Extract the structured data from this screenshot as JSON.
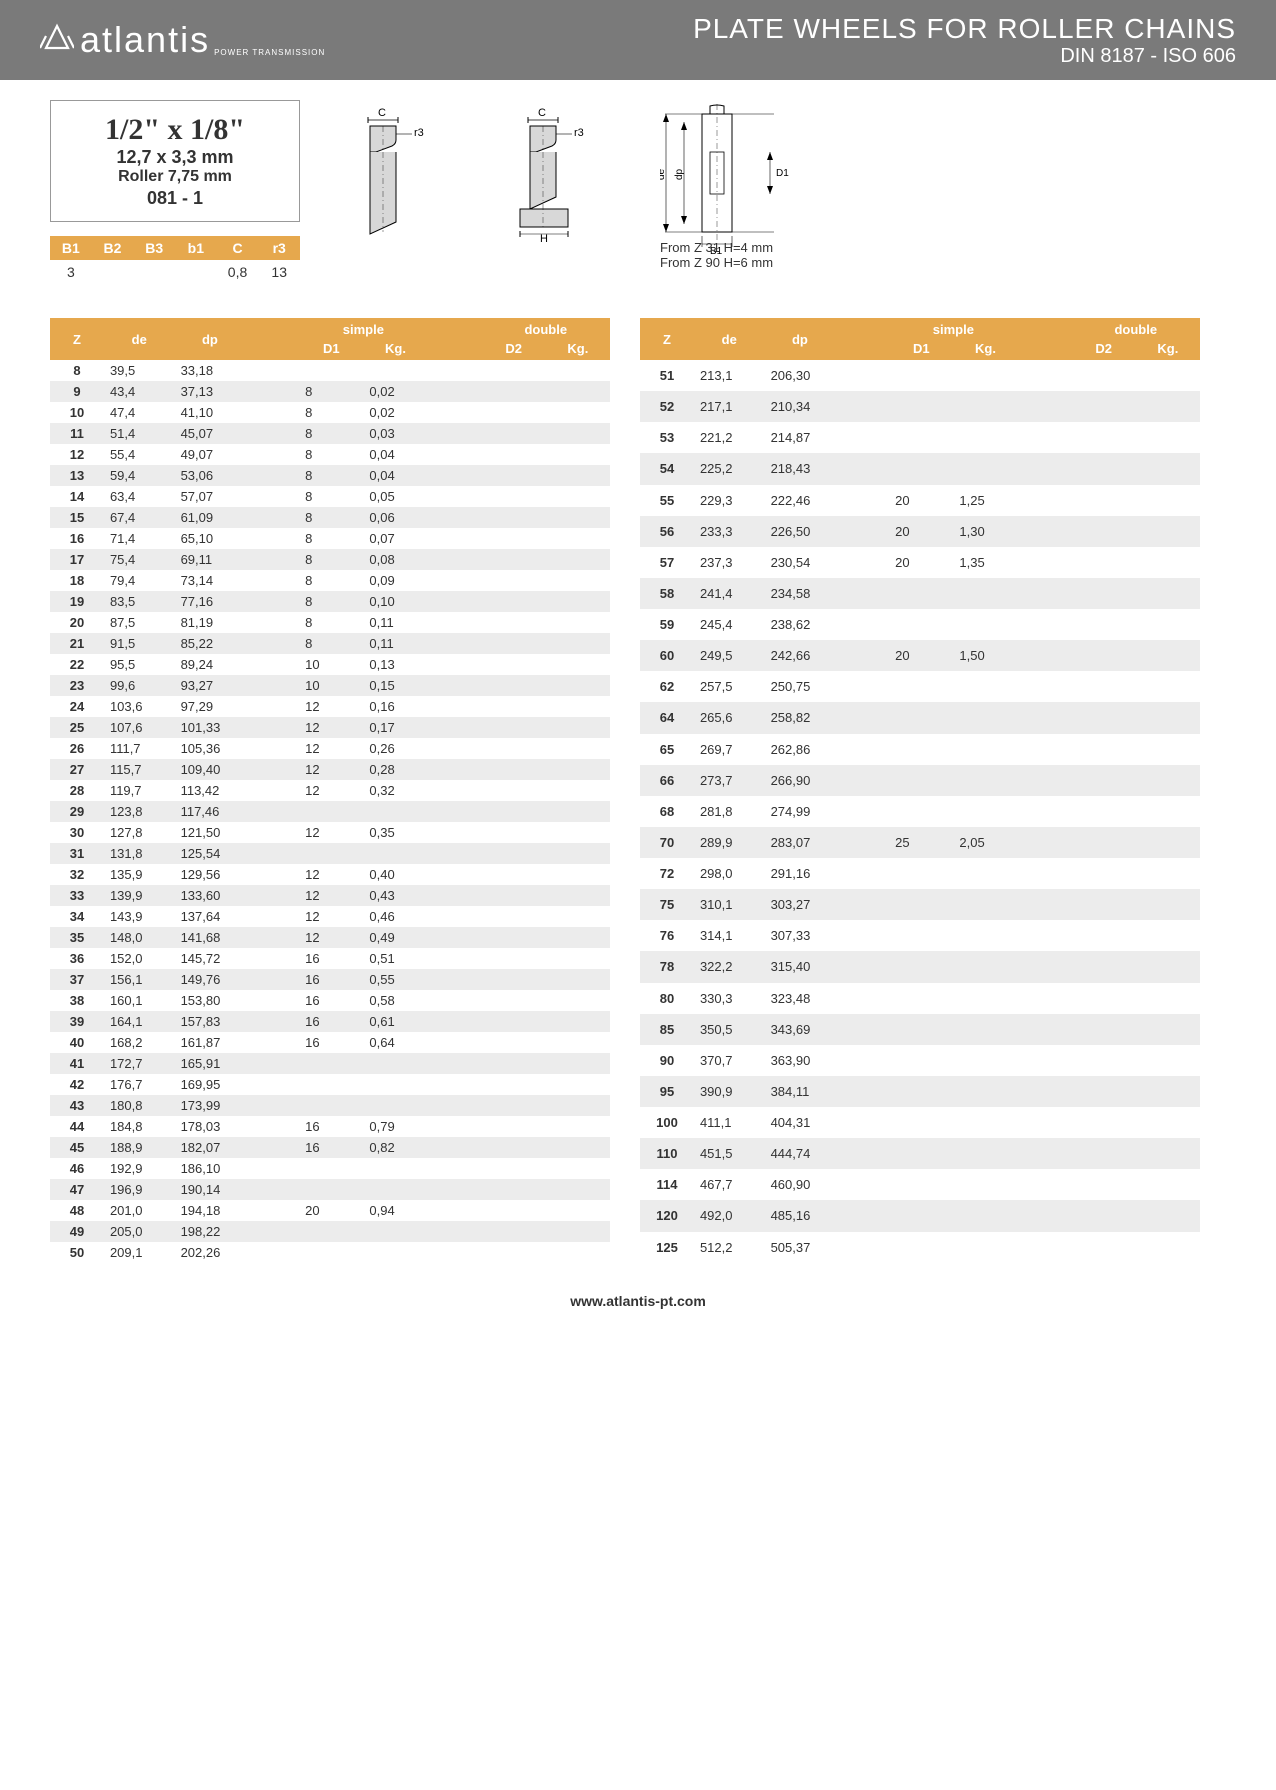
{
  "header": {
    "logo_text": "atlantis",
    "logo_sub": "POWER TRANSMISSION",
    "title_main": "PLATE WHEELS FOR ROLLER CHAINS",
    "title_sub": "DIN 8187 - ISO 606"
  },
  "spec": {
    "main": "1/2\" x 1/8\"",
    "mm": "12,7 x 3,3 mm",
    "roller": "Roller 7,75 mm",
    "code": "081 - 1"
  },
  "diag_notes": {
    "line1": "From Z 31 H=4 mm",
    "line2": "From Z 90 H=6 mm"
  },
  "params": {
    "headers": [
      "B1",
      "B2",
      "B3",
      "b1",
      "C",
      "r3"
    ],
    "values": [
      "3",
      "",
      "",
      "",
      "0,8",
      "13"
    ]
  },
  "table_headers": {
    "z": "Z",
    "de": "de",
    "dp": "dp",
    "simple": "simple",
    "d1": "D1",
    "kg": "Kg.",
    "double": "double",
    "d2": "D2",
    "kg2": "Kg."
  },
  "left_rows": [
    {
      "z": "8",
      "de": "39,5",
      "dp": "33,18",
      "d1": "",
      "kg": ""
    },
    {
      "z": "9",
      "de": "43,4",
      "dp": "37,13",
      "d1": "8",
      "kg": "0,02"
    },
    {
      "z": "10",
      "de": "47,4",
      "dp": "41,10",
      "d1": "8",
      "kg": "0,02"
    },
    {
      "z": "11",
      "de": "51,4",
      "dp": "45,07",
      "d1": "8",
      "kg": "0,03"
    },
    {
      "z": "12",
      "de": "55,4",
      "dp": "49,07",
      "d1": "8",
      "kg": "0,04"
    },
    {
      "z": "13",
      "de": "59,4",
      "dp": "53,06",
      "d1": "8",
      "kg": "0,04"
    },
    {
      "z": "14",
      "de": "63,4",
      "dp": "57,07",
      "d1": "8",
      "kg": "0,05"
    },
    {
      "z": "15",
      "de": "67,4",
      "dp": "61,09",
      "d1": "8",
      "kg": "0,06"
    },
    {
      "z": "16",
      "de": "71,4",
      "dp": "65,10",
      "d1": "8",
      "kg": "0,07"
    },
    {
      "z": "17",
      "de": "75,4",
      "dp": "69,11",
      "d1": "8",
      "kg": "0,08"
    },
    {
      "z": "18",
      "de": "79,4",
      "dp": "73,14",
      "d1": "8",
      "kg": "0,09"
    },
    {
      "z": "19",
      "de": "83,5",
      "dp": "77,16",
      "d1": "8",
      "kg": "0,10"
    },
    {
      "z": "20",
      "de": "87,5",
      "dp": "81,19",
      "d1": "8",
      "kg": "0,11"
    },
    {
      "z": "21",
      "de": "91,5",
      "dp": "85,22",
      "d1": "8",
      "kg": "0,11"
    },
    {
      "z": "22",
      "de": "95,5",
      "dp": "89,24",
      "d1": "10",
      "kg": "0,13"
    },
    {
      "z": "23",
      "de": "99,6",
      "dp": "93,27",
      "d1": "10",
      "kg": "0,15"
    },
    {
      "z": "24",
      "de": "103,6",
      "dp": "97,29",
      "d1": "12",
      "kg": "0,16"
    },
    {
      "z": "25",
      "de": "107,6",
      "dp": "101,33",
      "d1": "12",
      "kg": "0,17"
    },
    {
      "z": "26",
      "de": "111,7",
      "dp": "105,36",
      "d1": "12",
      "kg": "0,26"
    },
    {
      "z": "27",
      "de": "115,7",
      "dp": "109,40",
      "d1": "12",
      "kg": "0,28"
    },
    {
      "z": "28",
      "de": "119,7",
      "dp": "113,42",
      "d1": "12",
      "kg": "0,32"
    },
    {
      "z": "29",
      "de": "123,8",
      "dp": "117,46",
      "d1": "",
      "kg": ""
    },
    {
      "z": "30",
      "de": "127,8",
      "dp": "121,50",
      "d1": "12",
      "kg": "0,35"
    },
    {
      "z": "31",
      "de": "131,8",
      "dp": "125,54",
      "d1": "",
      "kg": ""
    },
    {
      "z": "32",
      "de": "135,9",
      "dp": "129,56",
      "d1": "12",
      "kg": "0,40"
    },
    {
      "z": "33",
      "de": "139,9",
      "dp": "133,60",
      "d1": "12",
      "kg": "0,43"
    },
    {
      "z": "34",
      "de": "143,9",
      "dp": "137,64",
      "d1": "12",
      "kg": "0,46"
    },
    {
      "z": "35",
      "de": "148,0",
      "dp": "141,68",
      "d1": "12",
      "kg": "0,49"
    },
    {
      "z": "36",
      "de": "152,0",
      "dp": "145,72",
      "d1": "16",
      "kg": "0,51"
    },
    {
      "z": "37",
      "de": "156,1",
      "dp": "149,76",
      "d1": "16",
      "kg": "0,55"
    },
    {
      "z": "38",
      "de": "160,1",
      "dp": "153,80",
      "d1": "16",
      "kg": "0,58"
    },
    {
      "z": "39",
      "de": "164,1",
      "dp": "157,83",
      "d1": "16",
      "kg": "0,61"
    },
    {
      "z": "40",
      "de": "168,2",
      "dp": "161,87",
      "d1": "16",
      "kg": "0,64"
    },
    {
      "z": "41",
      "de": "172,7",
      "dp": "165,91",
      "d1": "",
      "kg": ""
    },
    {
      "z": "42",
      "de": "176,7",
      "dp": "169,95",
      "d1": "",
      "kg": ""
    },
    {
      "z": "43",
      "de": "180,8",
      "dp": "173,99",
      "d1": "",
      "kg": ""
    },
    {
      "z": "44",
      "de": "184,8",
      "dp": "178,03",
      "d1": "16",
      "kg": "0,79"
    },
    {
      "z": "45",
      "de": "188,9",
      "dp": "182,07",
      "d1": "16",
      "kg": "0,82"
    },
    {
      "z": "46",
      "de": "192,9",
      "dp": "186,10",
      "d1": "",
      "kg": ""
    },
    {
      "z": "47",
      "de": "196,9",
      "dp": "190,14",
      "d1": "",
      "kg": ""
    },
    {
      "z": "48",
      "de": "201,0",
      "dp": "194,18",
      "d1": "20",
      "kg": "0,94"
    },
    {
      "z": "49",
      "de": "205,0",
      "dp": "198,22",
      "d1": "",
      "kg": ""
    },
    {
      "z": "50",
      "de": "209,1",
      "dp": "202,26",
      "d1": "",
      "kg": ""
    }
  ],
  "right_rows": [
    {
      "z": "51",
      "de": "213,1",
      "dp": "206,30",
      "d1": "",
      "kg": ""
    },
    {
      "z": "52",
      "de": "217,1",
      "dp": "210,34",
      "d1": "",
      "kg": ""
    },
    {
      "z": "53",
      "de": "221,2",
      "dp": "214,87",
      "d1": "",
      "kg": ""
    },
    {
      "z": "54",
      "de": "225,2",
      "dp": "218,43",
      "d1": "",
      "kg": ""
    },
    {
      "z": "55",
      "de": "229,3",
      "dp": "222,46",
      "d1": "20",
      "kg": "1,25"
    },
    {
      "z": "56",
      "de": "233,3",
      "dp": "226,50",
      "d1": "20",
      "kg": "1,30"
    },
    {
      "z": "57",
      "de": "237,3",
      "dp": "230,54",
      "d1": "20",
      "kg": "1,35"
    },
    {
      "z": "58",
      "de": "241,4",
      "dp": "234,58",
      "d1": "",
      "kg": ""
    },
    {
      "z": "59",
      "de": "245,4",
      "dp": "238,62",
      "d1": "",
      "kg": ""
    },
    {
      "z": "60",
      "de": "249,5",
      "dp": "242,66",
      "d1": "20",
      "kg": "1,50"
    },
    {
      "z": "62",
      "de": "257,5",
      "dp": "250,75",
      "d1": "",
      "kg": ""
    },
    {
      "z": "64",
      "de": "265,6",
      "dp": "258,82",
      "d1": "",
      "kg": ""
    },
    {
      "z": "65",
      "de": "269,7",
      "dp": "262,86",
      "d1": "",
      "kg": ""
    },
    {
      "z": "66",
      "de": "273,7",
      "dp": "266,90",
      "d1": "",
      "kg": ""
    },
    {
      "z": "68",
      "de": "281,8",
      "dp": "274,99",
      "d1": "",
      "kg": ""
    },
    {
      "z": "70",
      "de": "289,9",
      "dp": "283,07",
      "d1": "25",
      "kg": "2,05"
    },
    {
      "z": "72",
      "de": "298,0",
      "dp": "291,16",
      "d1": "",
      "kg": ""
    },
    {
      "z": "75",
      "de": "310,1",
      "dp": "303,27",
      "d1": "",
      "kg": ""
    },
    {
      "z": "76",
      "de": "314,1",
      "dp": "307,33",
      "d1": "",
      "kg": ""
    },
    {
      "z": "78",
      "de": "322,2",
      "dp": "315,40",
      "d1": "",
      "kg": ""
    },
    {
      "z": "80",
      "de": "330,3",
      "dp": "323,48",
      "d1": "",
      "kg": ""
    },
    {
      "z": "85",
      "de": "350,5",
      "dp": "343,69",
      "d1": "",
      "kg": ""
    },
    {
      "z": "90",
      "de": "370,7",
      "dp": "363,90",
      "d1": "",
      "kg": ""
    },
    {
      "z": "95",
      "de": "390,9",
      "dp": "384,11",
      "d1": "",
      "kg": ""
    },
    {
      "z": "100",
      "de": "411,1",
      "dp": "404,31",
      "d1": "",
      "kg": ""
    },
    {
      "z": "110",
      "de": "451,5",
      "dp": "444,74",
      "d1": "",
      "kg": ""
    },
    {
      "z": "114",
      "de": "467,7",
      "dp": "460,90",
      "d1": "",
      "kg": ""
    },
    {
      "z": "120",
      "de": "492,0",
      "dp": "485,16",
      "d1": "",
      "kg": ""
    },
    {
      "z": "125",
      "de": "512,2",
      "dp": "505,37",
      "d1": "",
      "kg": ""
    }
  ],
  "footer": "www.atlantis-pt.com",
  "colors": {
    "header_bg": "#7a7a7a",
    "accent": "#e6a84d",
    "stripe": "#ececec"
  }
}
